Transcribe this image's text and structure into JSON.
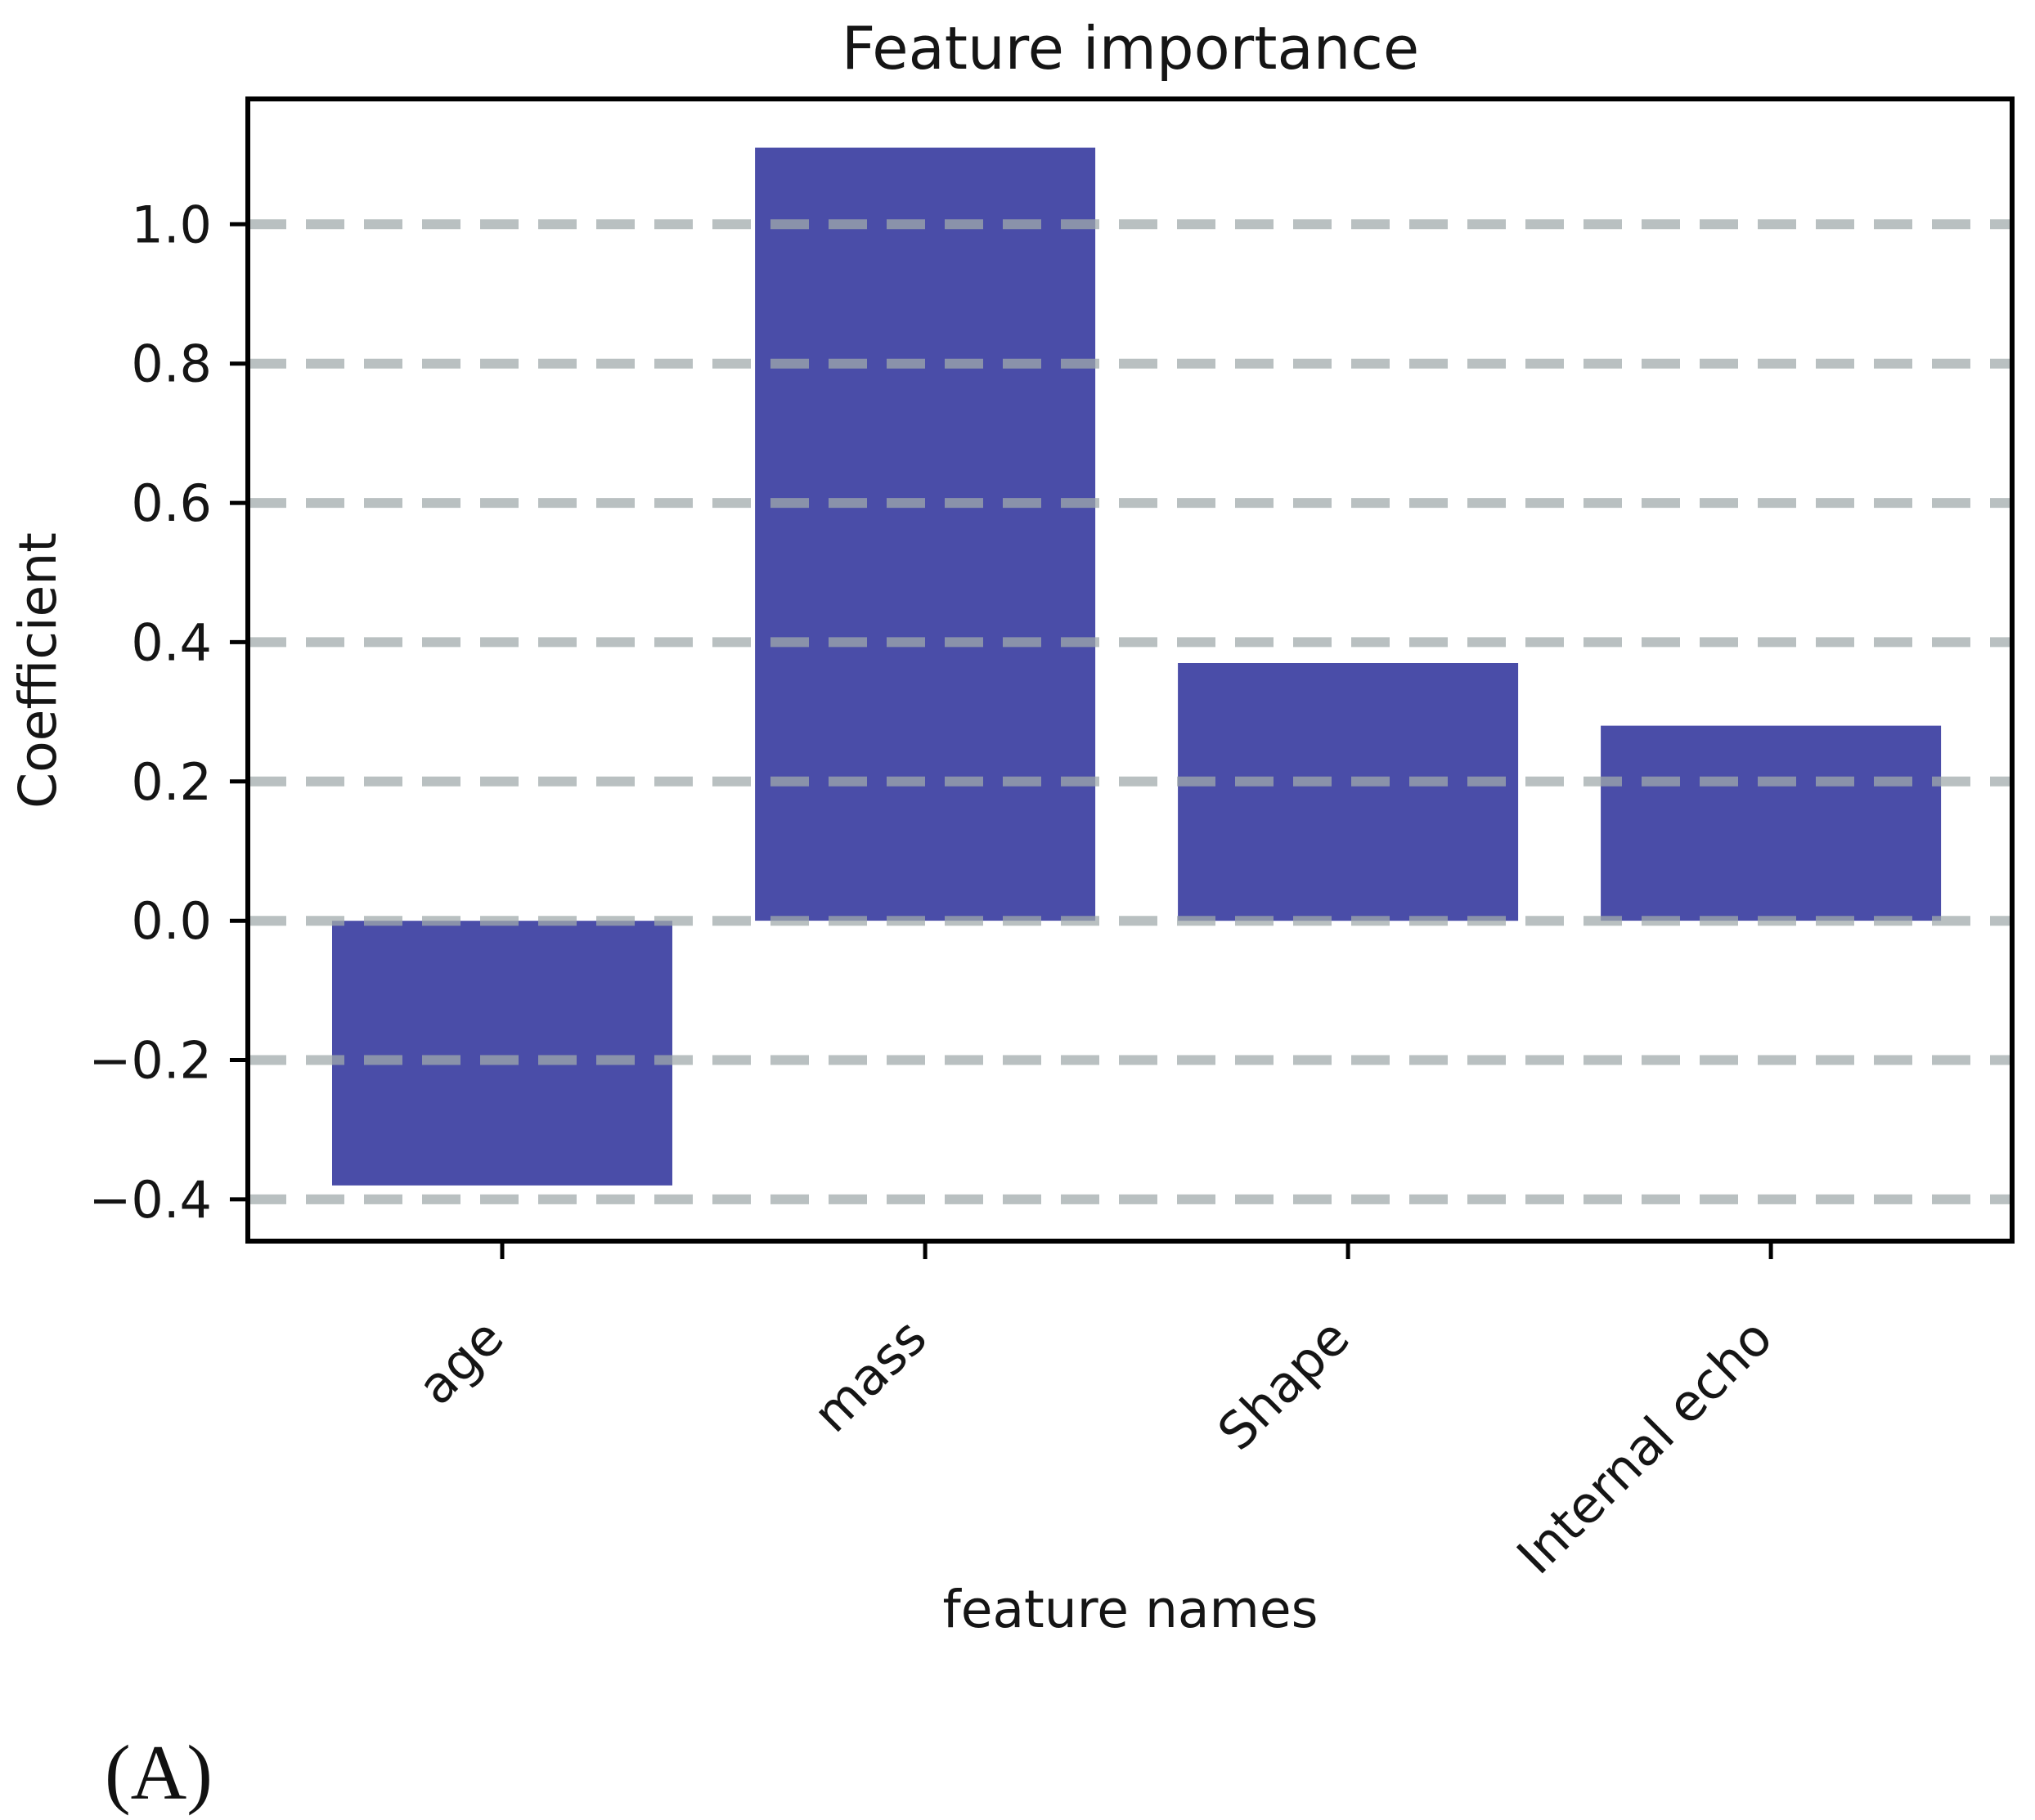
{
  "figure": {
    "panel_label": "(A)"
  },
  "chart_data": {
    "type": "bar",
    "title": "Feature importance",
    "xlabel": "feature names",
    "ylabel": "Coefficient",
    "categories": [
      "age",
      "mass",
      "Shape",
      "Internal echo"
    ],
    "values": [
      -0.38,
      1.11,
      0.37,
      0.28
    ],
    "ylim": [
      -0.46,
      1.18
    ],
    "yticks": [
      1.0,
      0.8,
      0.6,
      0.4,
      0.2,
      0.0,
      -0.2,
      -0.4
    ],
    "ytick_labels": [
      "1.0",
      "0.8",
      "0.6",
      "0.4",
      "0.2",
      "0.0",
      "−0.2",
      "−0.4"
    ],
    "x_tick_label_rotation_deg": 45,
    "bar_color": "#4a4da8",
    "grid": {
      "axis": "y",
      "style": "dashed",
      "color": "#a0aaac",
      "opacity": 0.74,
      "drawn_over_bars": true
    },
    "legend_position": "none"
  }
}
